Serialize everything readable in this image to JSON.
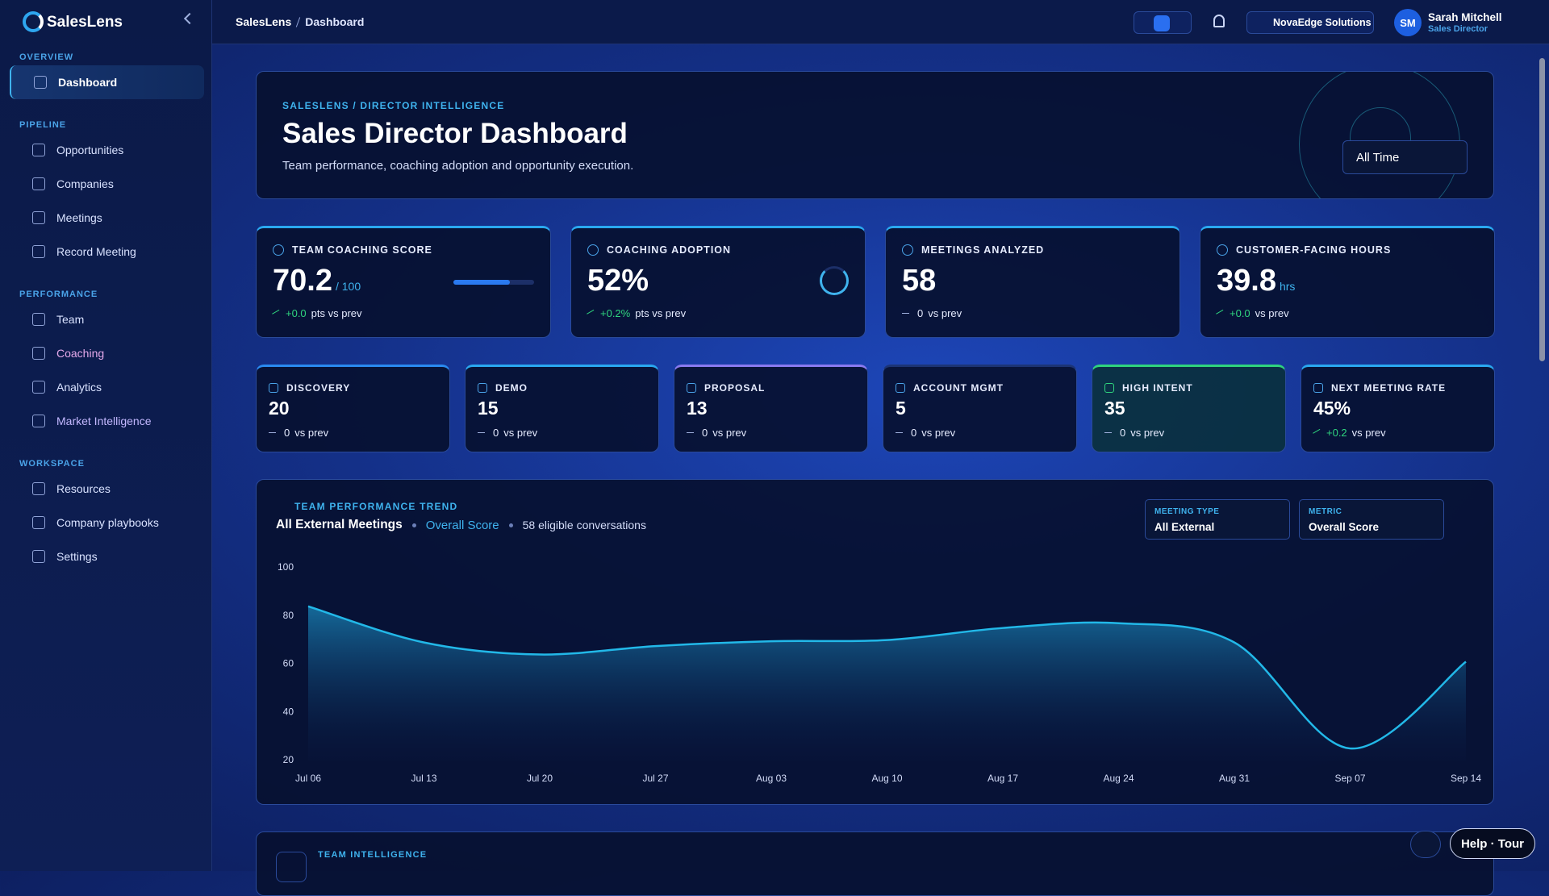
{
  "brand": "SalesLens",
  "breadcrumb": [
    "SalesLens",
    "Dashboard"
  ],
  "header": {
    "org": "NovaEdge Solutions",
    "user_initials": "SM",
    "user_name": "Sarah Mitchell",
    "user_role": "Sales Director"
  },
  "sidebar": [
    {
      "section": "OVERVIEW",
      "items": [
        "Dashboard"
      ]
    },
    {
      "section": "PIPELINE",
      "items": [
        "Opportunities",
        "Companies",
        "Meetings",
        "Record Meeting"
      ]
    },
    {
      "section": "PERFORMANCE",
      "items": [
        "Team",
        "Coaching",
        "Analytics",
        "Market Intelligence"
      ]
    },
    {
      "section": "WORKSPACE",
      "items": [
        "Resources",
        "Company playbooks",
        "Settings"
      ]
    }
  ],
  "hero": {
    "eyebrow": "SALESLENS / DIRECTOR INTELLIGENCE",
    "title": "Sales Director Dashboard",
    "subtitle": "Team performance, coaching adoption and opportunity execution.",
    "range": "All Time"
  },
  "kpis": [
    {
      "label": "TEAM COACHING SCORE",
      "value": 70.2,
      "unit": "/ 100",
      "delta": "+0.0",
      "suffix": "pts vs prev"
    },
    {
      "label": "COACHING ADOPTION",
      "value": "52%",
      "delta": "+0.2%",
      "suffix": "pts vs prev"
    },
    {
      "label": "MEETINGS ANALYZED",
      "value": 58,
      "delta": "0",
      "suffix": "vs prev"
    },
    {
      "label": "CUSTOMER-FACING HOURS",
      "value": 39.8,
      "unit": "hrs",
      "delta": "+0.0",
      "suffix": "vs prev"
    }
  ],
  "stages": [
    {
      "label": "DISCOVERY",
      "value": 20,
      "delta": "0",
      "suffix": "vs prev"
    },
    {
      "label": "DEMO",
      "value": 15,
      "delta": "0",
      "suffix": "vs prev"
    },
    {
      "label": "PROPOSAL",
      "value": 13,
      "delta": "0",
      "suffix": "vs prev"
    },
    {
      "label": "ACCOUNT MGMT",
      "value": 5,
      "delta": "0",
      "suffix": "vs prev"
    },
    {
      "label": "HIGH INTENT",
      "value": 35,
      "delta": "0",
      "suffix": "vs prev"
    },
    {
      "label": "NEXT MEETING RATE",
      "value": "45%",
      "delta": "+0.2",
      "suffix": "vs prev"
    }
  ],
  "chart_data": {
    "type": "line",
    "eyebrow": "TEAM PERFORMANCE TREND",
    "title": "All External Meetings",
    "note": "58 eligible conversations",
    "filters": [
      {
        "label": "MEETING TYPE",
        "value": "All External"
      },
      {
        "label": "METRIC",
        "value": "Overall Score"
      }
    ],
    "categories": [
      "Jul 06",
      "Jul 13",
      "Jul 20",
      "Jul 27",
      "Aug 03",
      "Aug 10",
      "Aug 17",
      "Aug 24",
      "Aug 31",
      "Sep 07",
      "Sep 14"
    ],
    "series": [
      {
        "name": "Overall Score",
        "color": "#22b8e8",
        "values": [
          84,
          69,
          64,
          67.5,
          69.5,
          70,
          75,
          77,
          69,
          25,
          61
        ]
      }
    ],
    "ylim": [
      20,
      100
    ],
    "yticks": [
      20,
      40,
      60,
      80,
      100
    ]
  },
  "bottom": {
    "eyebrow": "TEAM INTELLIGENCE"
  },
  "help": "Help · Tour"
}
